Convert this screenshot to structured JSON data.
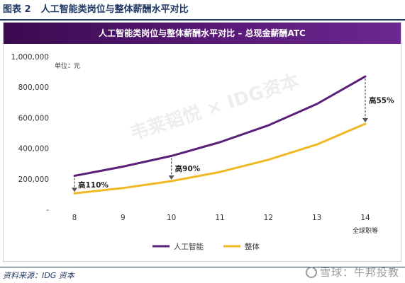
{
  "figure": {
    "number": "图表 2",
    "title": "人工智能类岗位与整体薪酬水平对比",
    "source": "资料来源：IDG 资本",
    "brand_watermark": "雪球：牛邦投教"
  },
  "chart_data": {
    "type": "line",
    "title": "人工智能类岗位与整体薪酬水平对比 – 总现金薪酬ATC",
    "unit_label": "单位：元",
    "watermark": "韦莱韬悦 × IDG资本",
    "x": [
      "8",
      "9",
      "10",
      "11",
      "12",
      "13",
      "14"
    ],
    "x_sublabel": "全球职等",
    "ylim": [
      0,
      1000000
    ],
    "yticks": [
      {
        "value": 1000000,
        "label": "1,000,000"
      },
      {
        "value": 800000,
        "label": "800,000"
      },
      {
        "value": 600000,
        "label": "600,000"
      },
      {
        "value": 400000,
        "label": "400,000"
      },
      {
        "value": 200000,
        "label": "200,000"
      },
      {
        "value": 0,
        "label": "-"
      }
    ],
    "series": [
      {
        "name": "人工智能",
        "color": "#5b1f7a",
        "values": [
          220000,
          280000,
          350000,
          440000,
          550000,
          690000,
          870000
        ]
      },
      {
        "name": "整体",
        "color": "#f0b823",
        "values": [
          105000,
          140000,
          185000,
          245000,
          325000,
          425000,
          560000
        ]
      }
    ],
    "annotations": [
      {
        "x": "8",
        "text": "高110%"
      },
      {
        "x": "10",
        "text": "高90%"
      },
      {
        "x": "14",
        "text": "高55%"
      }
    ],
    "legend_position": "bottom",
    "grid": false
  }
}
